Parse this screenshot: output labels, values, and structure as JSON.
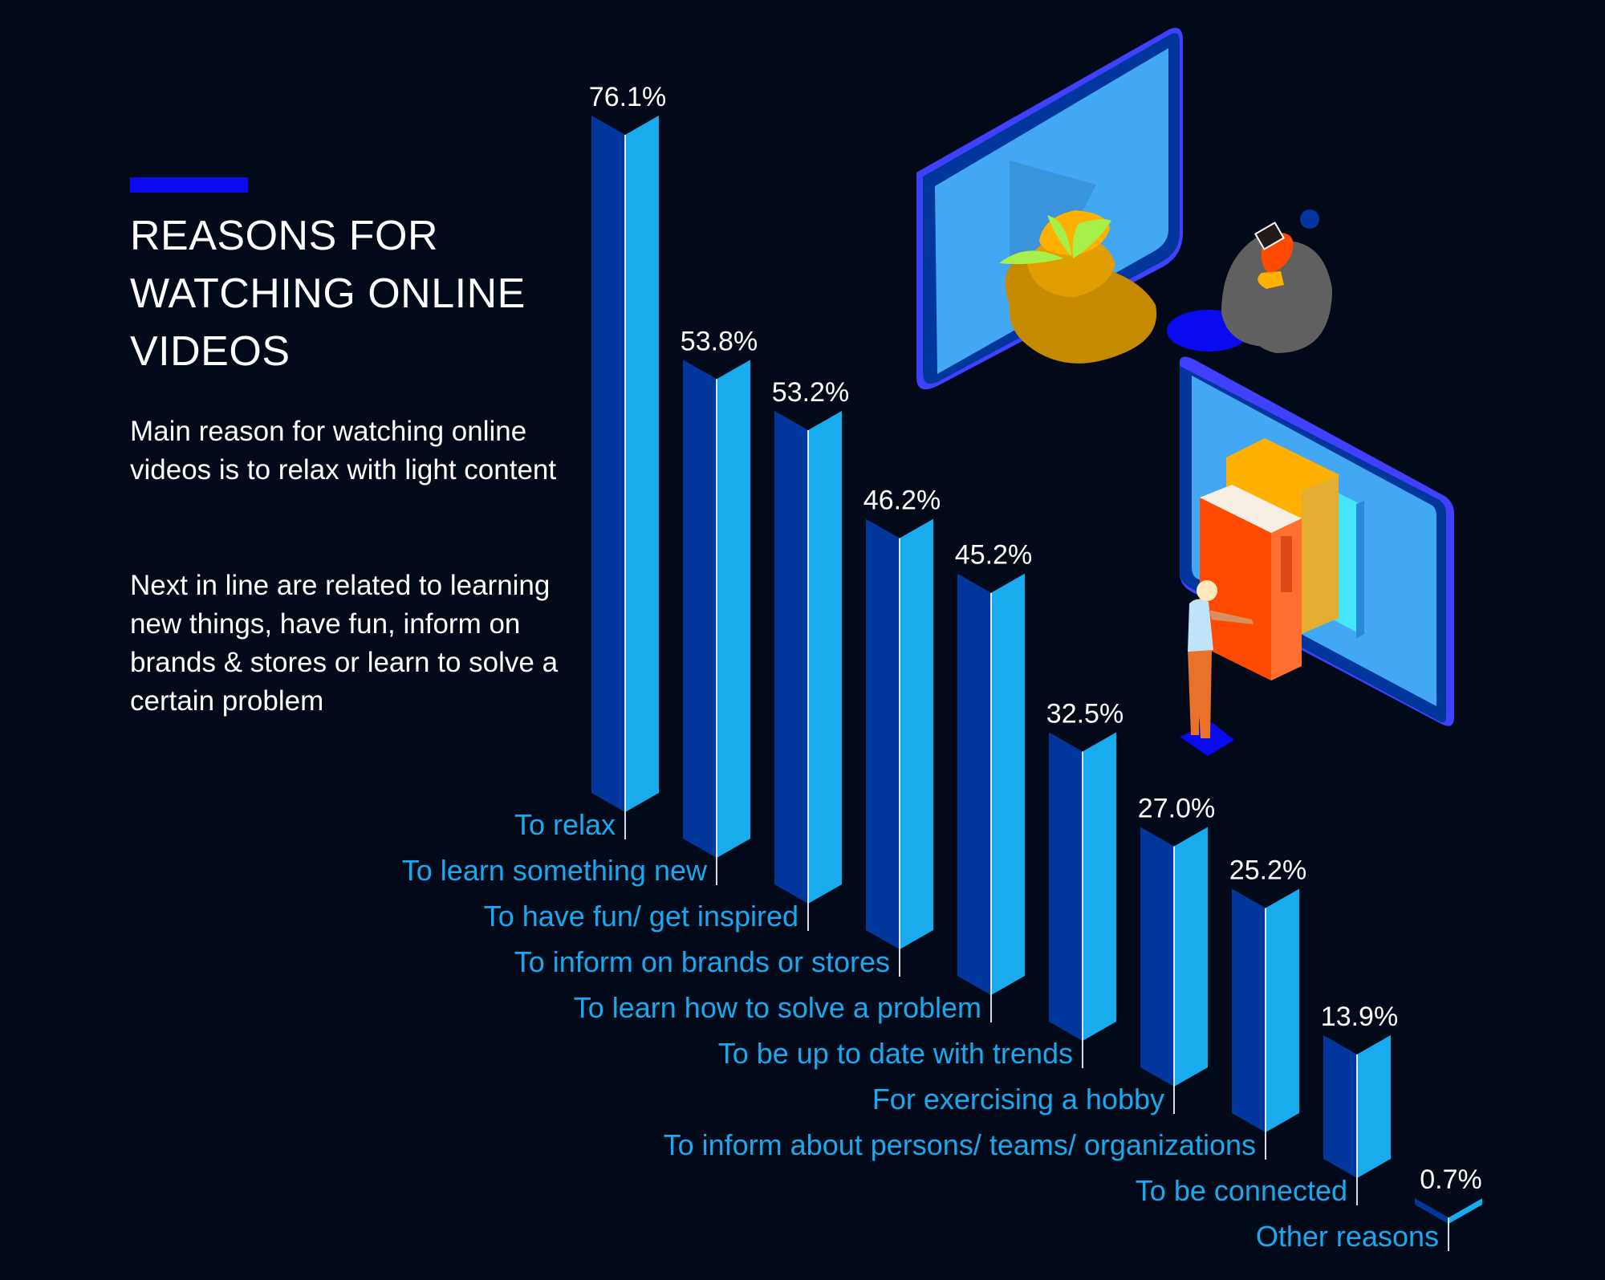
{
  "header": {
    "title": "REASONS FOR WATCHING ONLINE VIDEOS",
    "paragraph1": "Main reason for watching online videos is to relax with light content",
    "paragraph2": "Next in line are related to learning new things, have fun, inform on brands & stores or learn to solve a certain problem"
  },
  "colors": {
    "background": "#020a1a",
    "accent": "#0a0af0",
    "bar_dark": "#01379c",
    "bar_light": "#18abee",
    "label": "#1aa9ee",
    "value_text": "#ffffff"
  },
  "illustrations": [
    "monitor-with-plant-icon",
    "person-in-beanbag-with-tablet-icon",
    "monitor-with-books-icon",
    "person-pointing-icon"
  ],
  "chart_data": {
    "type": "bar",
    "title": "REASONS FOR WATCHING ONLINE VIDEOS",
    "xlabel": "",
    "ylabel": "",
    "ylim": [
      0,
      76.1
    ],
    "grid": false,
    "categories": [
      "To relax",
      "To learn something new",
      "To have fun/ get inspired",
      "To inform on brands or stores",
      "To learn how to solve a problem",
      "To be up to date with trends",
      "For exercising a hobby",
      "To inform about persons/ teams/ organizations",
      "To be connected",
      "Other reasons"
    ],
    "values": [
      76.1,
      53.8,
      53.2,
      46.2,
      45.2,
      32.5,
      27.0,
      25.2,
      13.9,
      0.7
    ],
    "value_labels": [
      "76.1%",
      "53.8%",
      "53.2%",
      "46.2%",
      "45.2%",
      "32.5%",
      "27.0%",
      "25.2%",
      "13.9%",
      "0.7%"
    ],
    "unit": "%"
  }
}
